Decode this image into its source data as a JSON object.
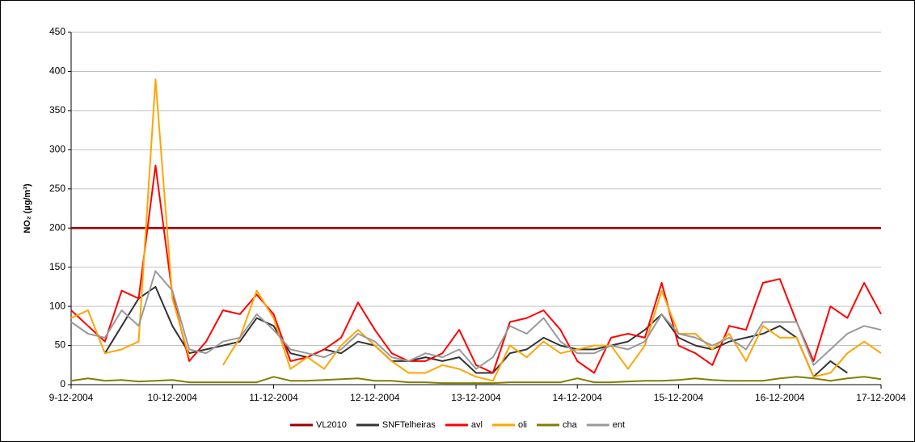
{
  "chart_data": {
    "type": "line",
    "y_label": "NO₂ (µg/m³)",
    "x": [
      0,
      4,
      8,
      12,
      16,
      20,
      24,
      28,
      32,
      36,
      40,
      44,
      48,
      52,
      56,
      60,
      64,
      68,
      72,
      76,
      80,
      84,
      88,
      92,
      96,
      100,
      104,
      108,
      112,
      116,
      120,
      124,
      128,
      132,
      136,
      140,
      144,
      148,
      152,
      156,
      160,
      164,
      168,
      172,
      176,
      180,
      184,
      188,
      192
    ],
    "xlim": [
      0,
      192
    ],
    "xticks": [
      {
        "value": 0,
        "label": "9-12-2004"
      },
      {
        "value": 24,
        "label": "10-12-2004"
      },
      {
        "value": 48,
        "label": "11-12-2004"
      },
      {
        "value": 72,
        "label": "12-12-2004"
      },
      {
        "value": 96,
        "label": "13-12-2004"
      },
      {
        "value": 120,
        "label": "14-12-2004"
      },
      {
        "value": 144,
        "label": "15-12-2004"
      },
      {
        "value": 168,
        "label": "16-12-2004"
      },
      {
        "value": 192,
        "label": "17-12-2004"
      }
    ],
    "ylim": [
      0,
      450
    ],
    "yticks": [
      0,
      50,
      100,
      150,
      200,
      250,
      300,
      350,
      400,
      450
    ],
    "grid": true,
    "legend": "bottom",
    "series": [
      {
        "name": "VL2010",
        "color": "#990000",
        "values": [
          200,
          200,
          200,
          200,
          200,
          200,
          200,
          200,
          200,
          200,
          200,
          200,
          200,
          200,
          200,
          200,
          200,
          200,
          200,
          200,
          200,
          200,
          200,
          200,
          200,
          200,
          200,
          200,
          200,
          200,
          200,
          200,
          200,
          200,
          200,
          200,
          200,
          200,
          200,
          200,
          200,
          200,
          200,
          200,
          200,
          200,
          200,
          200,
          200
        ]
      },
      {
        "name": "SNFTelheiras",
        "color": "#333333",
        "values": [
          null,
          null,
          40,
          75,
          110,
          125,
          75,
          40,
          45,
          50,
          55,
          85,
          75,
          40,
          35,
          45,
          40,
          55,
          50,
          30,
          30,
          35,
          30,
          35,
          15,
          15,
          40,
          45,
          60,
          50,
          45,
          45,
          50,
          55,
          70,
          90,
          60,
          50,
          45,
          55,
          60,
          65,
          75,
          60,
          10,
          30,
          15,
          null,
          null
        ]
      },
      {
        "name": "avl",
        "color": "#ff0000",
        "values": [
          95,
          75,
          55,
          120,
          110,
          280,
          115,
          30,
          55,
          95,
          90,
          115,
          90,
          30,
          35,
          45,
          60,
          105,
          70,
          40,
          30,
          30,
          40,
          70,
          25,
          15,
          80,
          85,
          95,
          70,
          30,
          15,
          60,
          65,
          60,
          130,
          50,
          40,
          25,
          75,
          70,
          130,
          135,
          80,
          30,
          100,
          85,
          130,
          90
        ]
      },
      {
        "name": "oli",
        "color": "#ffa500",
        "values": [
          85,
          95,
          40,
          45,
          55,
          390,
          110,
          35,
          null,
          25,
          60,
          120,
          85,
          20,
          35,
          20,
          50,
          70,
          50,
          30,
          15,
          15,
          25,
          20,
          10,
          5,
          50,
          35,
          55,
          40,
          45,
          50,
          50,
          20,
          50,
          120,
          65,
          65,
          45,
          65,
          30,
          75,
          60,
          60,
          10,
          15,
          40,
          55,
          40
        ]
      },
      {
        "name": "cha",
        "color": "#808000",
        "values": [
          5,
          8,
          5,
          6,
          4,
          5,
          6,
          3,
          3,
          3,
          3,
          3,
          10,
          5,
          5,
          6,
          7,
          8,
          5,
          5,
          3,
          3,
          2,
          2,
          2,
          2,
          3,
          3,
          3,
          3,
          8,
          3,
          3,
          4,
          5,
          5,
          6,
          8,
          6,
          5,
          5,
          5,
          8,
          10,
          8,
          5,
          8,
          10,
          7
        ]
      },
      {
        "name": "ent",
        "color": "#999999",
        "values": [
          80,
          65,
          60,
          95,
          75,
          145,
          120,
          45,
          40,
          55,
          60,
          90,
          70,
          45,
          40,
          35,
          45,
          65,
          55,
          35,
          30,
          40,
          35,
          45,
          20,
          35,
          75,
          65,
          85,
          55,
          40,
          40,
          50,
          45,
          55,
          90,
          65,
          60,
          50,
          60,
          45,
          80,
          80,
          80,
          25,
          45,
          65,
          75,
          70
        ]
      }
    ]
  }
}
